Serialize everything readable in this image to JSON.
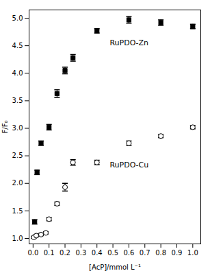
{
  "chart_data": {
    "type": "scatter",
    "xlabel": "[AcP]/mmol L⁻¹",
    "ylabel": "F/F₀",
    "xlim": [
      -0.025,
      1.05
    ],
    "ylim": [
      0.9,
      5.15
    ],
    "xticks": [
      {
        "value": 0.0,
        "label": "0.0"
      },
      0.1,
      0.2,
      0.3,
      0.4,
      0.5,
      0.6,
      0.7,
      0.8,
      0.9,
      {
        "value": 1.0,
        "label": "1.0"
      }
    ],
    "yticks": [
      {
        "value": 1.0,
        "label": "1.0"
      },
      1.5,
      {
        "value": 2.0,
        "label": "2.0"
      },
      2.5,
      {
        "value": 3.0,
        "label": "3.0"
      },
      3.5,
      {
        "value": 4.0,
        "label": "4.0"
      },
      4.5,
      {
        "value": 5.0,
        "label": "5.0"
      }
    ],
    "series": [
      {
        "name": "RuPDO-Zn",
        "color": "#000000",
        "marker": "square",
        "x": [
          0.01,
          0.025,
          0.05,
          0.1,
          0.15,
          0.2,
          0.25,
          0.4,
          0.6,
          0.8,
          1.0
        ],
        "values": [
          1.3,
          2.2,
          2.73,
          3.02,
          3.63,
          4.05,
          4.28,
          4.77,
          4.97,
          4.92,
          4.85
        ],
        "yerr": [
          0.04,
          0.04,
          0.04,
          0.05,
          0.07,
          0.06,
          0.06,
          0.04,
          0.06,
          0.05,
          0.04
        ]
      },
      {
        "name": "RuPDO-Cu",
        "color": "#000000",
        "marker": "open_circle",
        "x": [
          0.005,
          0.02,
          0.05,
          0.08,
          0.1,
          0.15,
          0.2,
          0.25,
          0.4,
          0.6,
          0.8,
          1.0
        ],
        "values": [
          1.02,
          1.05,
          1.07,
          1.1,
          1.35,
          1.63,
          1.93,
          2.38,
          2.38,
          2.73,
          2.86,
          3.02
        ],
        "yerr": [
          0.02,
          0.02,
          0.02,
          0.02,
          0.03,
          0.03,
          0.07,
          0.05,
          0.04,
          0.04,
          0.03,
          0.03
        ]
      }
    ],
    "annotations": [
      {
        "text": "RuPDO-Zn",
        "x": 0.48,
        "y": 4.55
      },
      {
        "text": "RuPDO-Cu",
        "x": 0.48,
        "y": 2.33
      }
    ],
    "grid": false
  }
}
